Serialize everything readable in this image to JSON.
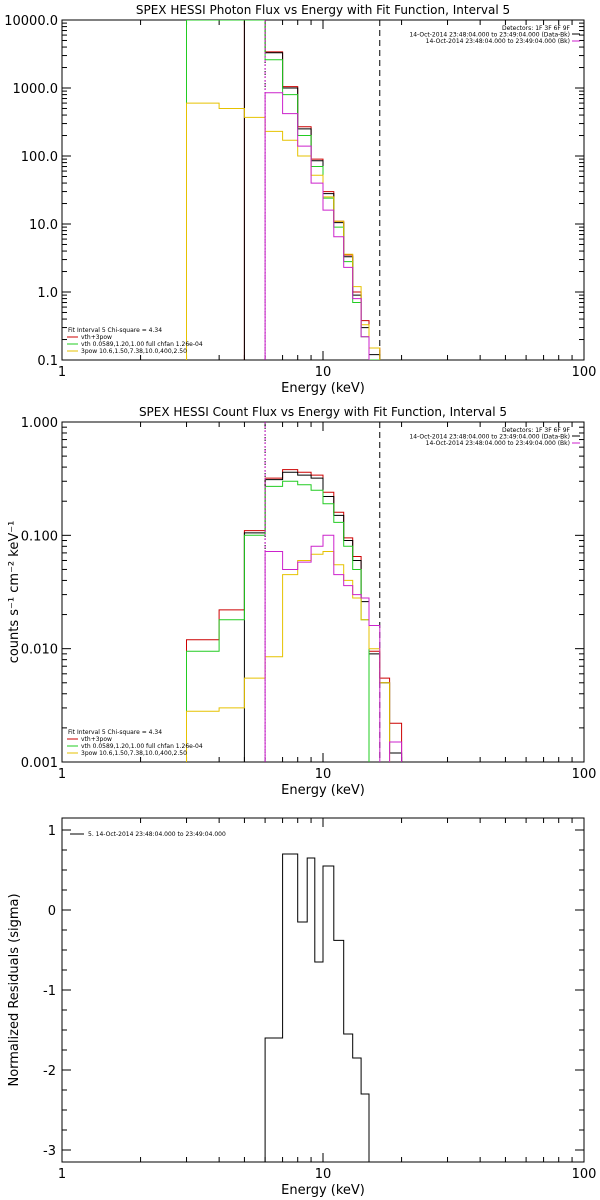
{
  "panels": [
    {
      "title": "SPEX HESSI Photon Flux vs Energy with Fit Function, Interval 5",
      "xlabel": "Energy (keV)",
      "ylabel": "",
      "yticks": [
        "0.1",
        "1.0",
        "10.0",
        "100.0",
        "1000.0",
        "10000.0"
      ],
      "xticks": [
        "1",
        "10",
        "100"
      ],
      "legend_tr": [
        "Detectors: 1F 3F 6F 9F",
        "14-Oct-2014 23:48:04.000 to 23:49:04.000 (Data-Bk)",
        "14-Oct-2014 23:48:04.000 to 23:49:04.000 (Bk)"
      ],
      "legend_bl": [
        "Fit Interval 5   Chi-square = 4.34",
        "vth+3pow",
        "vth 0.0589,1.20,1.00  full chfan 1.26e-04",
        "3pow 10.6,1.50,7.38,10.0,400,2.50"
      ]
    },
    {
      "title": "SPEX HESSI Count Flux vs Energy with Fit Function, Interval 5",
      "xlabel": "Energy (keV)",
      "ylabel": "counts s⁻¹ cm⁻² keV⁻¹",
      "yticks": [
        "0.001",
        "0.010",
        "0.100",
        "1.000"
      ],
      "xticks": [
        "1",
        "10",
        "100"
      ],
      "legend_tr": [
        "Detectors: 1F 3F 6F 9F",
        "14-Oct-2014 23:48:04.000 to 23:49:04.000 (Data-Bk)",
        "14-Oct-2014 23:48:04.000 to 23:49:04.000 (Bk)"
      ],
      "legend_bl": [
        "Fit Interval 5   Chi-square = 4.34",
        "vth+3pow",
        "vth 0.0589,1.20,1.00  full chfan 1.26e-04",
        "3pow 10.6,1.50,7.38,10.0,400,2.50"
      ]
    },
    {
      "title": "",
      "xlabel": "Energy (keV)",
      "ylabel": "Normalized Residuals (sigma)",
      "yticks": [
        "-3",
        "-2",
        "-1",
        "0",
        "1"
      ],
      "xticks": [
        "1",
        "10",
        "100"
      ],
      "legend_tr": [],
      "legend_bl": [],
      "legend_tl": "5. 14-Oct-2014 23:48:04.000 to 23:49:04.000"
    }
  ],
  "colors": {
    "data": "#000000",
    "model": "#cc0000",
    "vth": "#22cc22",
    "pow": "#e6c200",
    "bk": "#cc22cc"
  },
  "chart_data": [
    {
      "type": "line",
      "title": "SPEX HESSI Photon Flux vs Energy with Fit Function, Interval 5",
      "xlabel": "Energy (keV)",
      "xscale": "log",
      "yscale": "log",
      "xlim": [
        1,
        100
      ],
      "ylim": [
        0.1,
        10000
      ],
      "edges": [
        3,
        4,
        5,
        6,
        7,
        8,
        9,
        10,
        11,
        12,
        13,
        14,
        15,
        16.5,
        18,
        20
      ],
      "series": [
        {
          "name": "vth+3pow",
          "color": "#cc0000",
          "values": [
            null,
            null,
            10000,
            3400,
            1050,
            270,
            90,
            30,
            11,
            3.5,
            1.0,
            0.38,
            0.15,
            null,
            null
          ]
        },
        {
          "name": "Data-Bk",
          "color": "#000000",
          "values": [
            null,
            null,
            10000,
            3300,
            1000,
            250,
            85,
            28,
            10.5,
            3.3,
            0.9,
            0.3,
            0.12,
            null,
            null
          ]
        },
        {
          "name": "vth",
          "color": "#22cc22",
          "values": [
            10000,
            10000,
            10000,
            2600,
            800,
            200,
            70,
            24,
            9,
            2.8,
            0.7,
            0.22,
            0.1,
            null,
            null
          ]
        },
        {
          "name": "3pow",
          "color": "#e6c200",
          "values": [
            600,
            500,
            370,
            230,
            170,
            100,
            52,
            25,
            11,
            3.6,
            1.2,
            0.33,
            0.15,
            null,
            null
          ]
        },
        {
          "name": "Bk",
          "color": "#cc22cc",
          "values": [
            null,
            null,
            null,
            850,
            420,
            140,
            40,
            16,
            6.5,
            2.3,
            0.8,
            0.22,
            null,
            null,
            null
          ]
        }
      ],
      "vlines": [
        {
          "x": 6,
          "style": "dotted"
        },
        {
          "x": 16.5,
          "style": "dashed"
        }
      ]
    },
    {
      "type": "line",
      "title": "SPEX HESSI Count Flux vs Energy with Fit Function, Interval 5",
      "xlabel": "Energy (keV)",
      "xscale": "log",
      "yscale": "log",
      "xlim": [
        1,
        100
      ],
      "ylim": [
        0.001,
        1
      ],
      "edges": [
        3,
        4,
        5,
        6,
        7,
        8,
        9,
        10,
        11,
        12,
        13,
        14,
        15,
        16.5,
        18,
        20
      ],
      "series": [
        {
          "name": "vth+3pow",
          "color": "#cc0000",
          "values": [
            0.012,
            0.022,
            0.11,
            0.32,
            0.38,
            0.36,
            0.34,
            0.24,
            0.16,
            0.095,
            0.065,
            0.028,
            0.0095,
            0.0055,
            0.0022
          ]
        },
        {
          "name": "Data-Bk",
          "color": "#000000",
          "values": [
            null,
            null,
            0.105,
            0.31,
            0.36,
            0.34,
            0.32,
            0.22,
            0.15,
            0.09,
            0.06,
            0.026,
            0.009,
            0.005,
            0.0012
          ]
        },
        {
          "name": "vth",
          "color": "#22cc22",
          "values": [
            0.0095,
            0.018,
            0.1,
            0.27,
            0.3,
            0.28,
            0.25,
            0.19,
            0.13,
            0.08,
            0.05,
            0.018,
            null,
            null,
            null
          ]
        },
        {
          "name": "3pow",
          "color": "#e6c200",
          "values": [
            0.0028,
            0.003,
            0.0055,
            0.0085,
            0.045,
            0.06,
            0.068,
            0.072,
            0.055,
            0.04,
            0.028,
            0.018,
            0.01,
            0.005,
            null
          ]
        },
        {
          "name": "Bk",
          "color": "#cc22cc",
          "values": [
            null,
            null,
            null,
            0.072,
            0.05,
            0.058,
            0.08,
            0.1,
            0.045,
            0.036,
            0.03,
            0.028,
            0.016,
            null,
            0.0015
          ]
        }
      ],
      "vlines": [
        {
          "x": 6,
          "style": "dotted"
        },
        {
          "x": 16.5,
          "style": "dashed"
        }
      ]
    },
    {
      "type": "line",
      "title": "",
      "xlabel": "Energy (keV)",
      "ylabel": "Normalized Residuals (sigma)",
      "xscale": "log",
      "xlim": [
        1,
        100
      ],
      "ylim": [
        -3.15,
        1.15
      ],
      "edges": [
        6,
        7,
        8,
        8.7,
        9.3,
        10,
        11,
        12,
        13,
        14,
        15,
        16.5
      ],
      "series": [
        {
          "name": "5. 14-Oct-2014 23:48:04.000 to 23:49:04.000",
          "color": "#000000",
          "values": [
            -1.6,
            0.7,
            -0.15,
            0.65,
            -0.65,
            0.55,
            -0.38,
            -1.55,
            -1.85,
            -2.3,
            -3.15
          ]
        }
      ]
    }
  ]
}
